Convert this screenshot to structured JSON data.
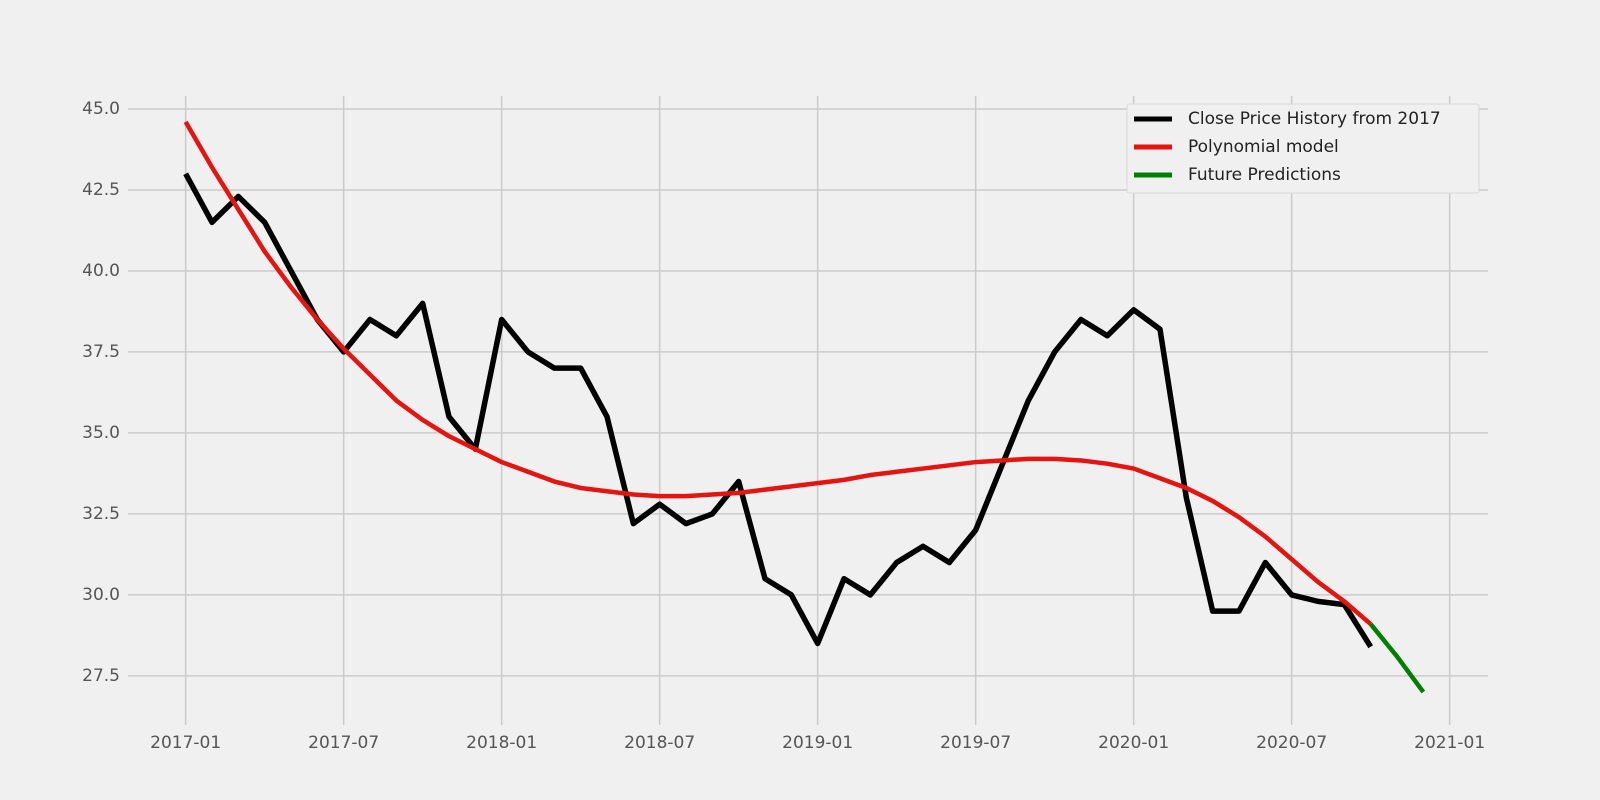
{
  "chart_data": {
    "type": "line",
    "series": [
      {
        "name": "Close Price History from 2017",
        "color": "#000000",
        "x": [
          "2017-01",
          "2017-02",
          "2017-03",
          "2017-04",
          "2017-05",
          "2017-06",
          "2017-07",
          "2017-08",
          "2017-09",
          "2017-10",
          "2017-11",
          "2017-12",
          "2018-01",
          "2018-02",
          "2018-03",
          "2018-04",
          "2018-05",
          "2018-06",
          "2018-07",
          "2018-08",
          "2018-09",
          "2018-10",
          "2018-11",
          "2018-12",
          "2019-01",
          "2019-02",
          "2019-03",
          "2019-04",
          "2019-05",
          "2019-06",
          "2019-07",
          "2019-08",
          "2019-09",
          "2019-10",
          "2019-11",
          "2019-12",
          "2020-01",
          "2020-02",
          "2020-03",
          "2020-04",
          "2020-05",
          "2020-06",
          "2020-07",
          "2020-08",
          "2020-09",
          "2020-10"
        ],
        "values": [
          43.0,
          41.5,
          42.3,
          41.5,
          40.0,
          38.5,
          37.5,
          38.5,
          38.0,
          39.0,
          35.5,
          34.5,
          38.5,
          37.5,
          37.0,
          37.0,
          35.5,
          32.2,
          32.8,
          32.2,
          32.5,
          33.5,
          30.5,
          30.0,
          28.5,
          30.5,
          30.0,
          31.0,
          31.5,
          31.0,
          32.0,
          34.0,
          36.0,
          37.5,
          38.5,
          38.0,
          38.8,
          38.2,
          33.0,
          29.5,
          29.5,
          31.0,
          30.0,
          29.8,
          29.7,
          28.4
        ]
      },
      {
        "name": "Polynomial model",
        "color": "#e5140f",
        "x": [
          "2017-01",
          "2017-02",
          "2017-03",
          "2017-04",
          "2017-05",
          "2017-06",
          "2017-07",
          "2017-08",
          "2017-09",
          "2017-10",
          "2017-11",
          "2017-12",
          "2018-01",
          "2018-02",
          "2018-03",
          "2018-04",
          "2018-05",
          "2018-06",
          "2018-07",
          "2018-08",
          "2018-09",
          "2018-10",
          "2018-11",
          "2018-12",
          "2019-01",
          "2019-02",
          "2019-03",
          "2019-04",
          "2019-05",
          "2019-06",
          "2019-07",
          "2019-08",
          "2019-09",
          "2019-10",
          "2019-11",
          "2019-12",
          "2020-01",
          "2020-02",
          "2020-03",
          "2020-04",
          "2020-05",
          "2020-06",
          "2020-07",
          "2020-08",
          "2020-09",
          "2020-10"
        ],
        "values": [
          44.6,
          43.2,
          41.9,
          40.6,
          39.5,
          38.5,
          37.6,
          36.8,
          36.0,
          35.4,
          34.9,
          34.5,
          34.1,
          33.8,
          33.5,
          33.3,
          33.2,
          33.1,
          33.05,
          33.05,
          33.1,
          33.15,
          33.25,
          33.35,
          33.45,
          33.55,
          33.7,
          33.8,
          33.9,
          34.0,
          34.1,
          34.15,
          34.2,
          34.2,
          34.15,
          34.05,
          33.9,
          33.6,
          33.3,
          32.9,
          32.4,
          31.8,
          31.1,
          30.4,
          29.8,
          29.1
        ]
      },
      {
        "name": "Future Predictions",
        "color": "#008000",
        "x": [
          "2020-10",
          "2020-11",
          "2020-12"
        ],
        "values": [
          29.1,
          28.1,
          27.0
        ]
      }
    ],
    "xlim": [
      "2016-11",
      "2021-02"
    ],
    "xticks": [
      "2017-01",
      "2017-07",
      "2018-01",
      "2018-07",
      "2019-01",
      "2019-07",
      "2020-01",
      "2020-07",
      "2021-01"
    ],
    "ylim": [
      26.2,
      45.4
    ],
    "yticks": [
      {
        "value": 27.5,
        "label": "27.5"
      },
      {
        "value": 30,
        "label": "30.0"
      },
      {
        "value": 32.5,
        "label": "32.5"
      },
      {
        "value": 35,
        "label": "35.0"
      },
      {
        "value": 37.5,
        "label": "37.5"
      },
      {
        "value": 40,
        "label": "40.0"
      },
      {
        "value": 42.5,
        "label": "42.5"
      },
      {
        "value": 45,
        "label": "45.0"
      }
    ],
    "grid": true,
    "legend": "upper right"
  }
}
